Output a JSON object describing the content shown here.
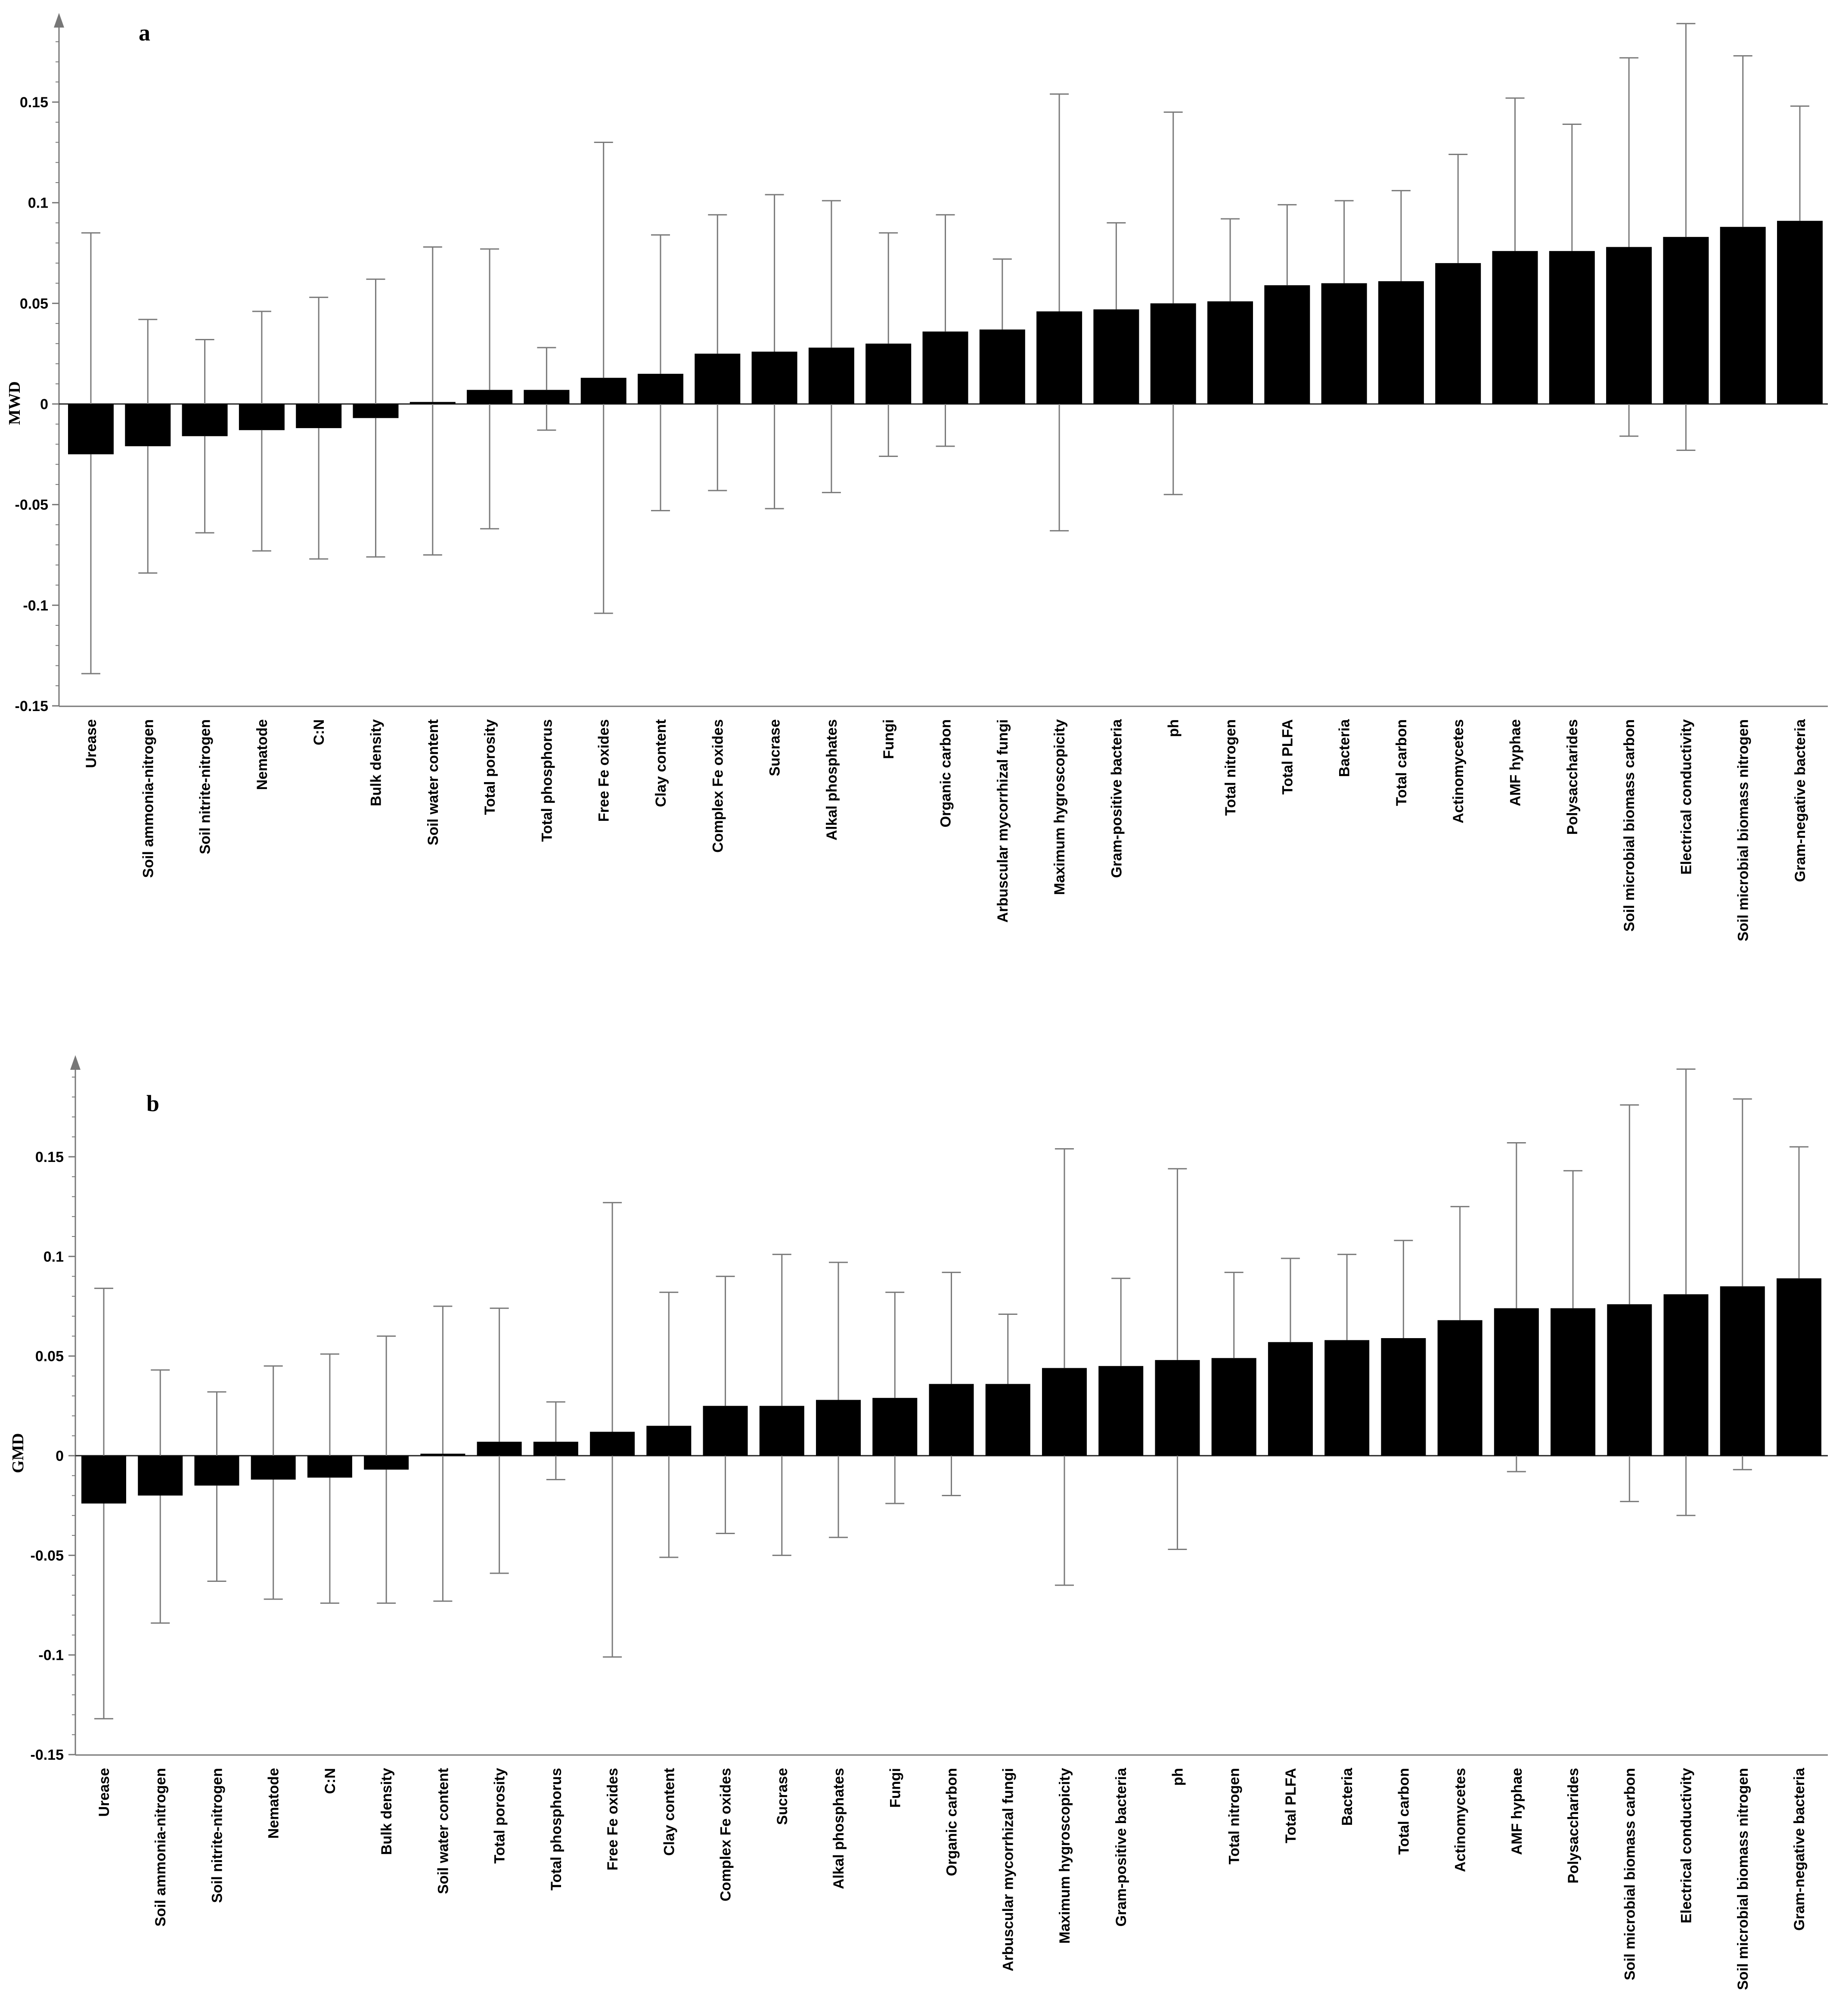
{
  "chart_data": [
    {
      "type": "bar",
      "panel": "a",
      "ylabel": "MWD",
      "ylim": [
        -0.15,
        0.2
      ],
      "yticks": [
        0.15,
        0.1,
        0.05,
        0,
        -0.05,
        -0.1,
        -0.15
      ],
      "ytick_labels": [
        "0.15",
        "0.1",
        "0.05",
        "0",
        "-0.05",
        "-0.1",
        "-0.15"
      ],
      "categories": [
        "Urease",
        "Soil ammonia-nitrogen",
        "Soil nitrite-nitrogen",
        "Nematode",
        "C:N",
        "Bulk density",
        "Soil water content",
        "Total porosity",
        "Total phosphorus",
        "Free Fe oxides",
        "Clay content",
        "Complex Fe oxides",
        "Sucrase",
        "Alkal phosphates",
        "Fungi",
        "Organic carbon",
        "Arbuscular mycorrhizal fungi",
        "Maximum hygroscopicity",
        "Gram-positive bacteria",
        "ph",
        "Total nitrogen",
        "Total PLFA",
        "Bacteria",
        "Total carbon",
        "Actinomycetes",
        "AMF hyphae",
        "Polysaccharides",
        "Soil microbial biomass carbon",
        "Electrical conductivity",
        "Soil microbial biomass nitrogen",
        "Gram-negative bacteria"
      ],
      "values": [
        -0.025,
        -0.021,
        -0.016,
        -0.013,
        -0.012,
        -0.007,
        0.001,
        0.007,
        0.007,
        0.013,
        0.015,
        0.025,
        0.026,
        0.028,
        0.03,
        0.036,
        0.037,
        0.046,
        0.047,
        0.05,
        0.051,
        0.059,
        0.06,
        0.061,
        0.07,
        0.076,
        0.076,
        0.078,
        0.083,
        0.088,
        0.091
      ],
      "err_low": [
        -0.134,
        -0.084,
        -0.064,
        -0.073,
        -0.077,
        -0.076,
        -0.075,
        -0.062,
        -0.013,
        -0.104,
        -0.053,
        -0.043,
        -0.052,
        -0.044,
        -0.026,
        -0.021,
        null,
        -0.063,
        null,
        -0.045,
        null,
        null,
        null,
        null,
        null,
        null,
        null,
        -0.016,
        -0.023,
        null,
        null
      ],
      "err_high": [
        0.085,
        0.042,
        0.032,
        0.046,
        0.053,
        0.062,
        0.078,
        0.077,
        0.028,
        0.13,
        0.084,
        0.094,
        0.104,
        0.101,
        0.085,
        0.094,
        0.072,
        0.154,
        0.09,
        0.145,
        0.092,
        0.099,
        0.101,
        0.106,
        0.124,
        0.152,
        0.139,
        0.172,
        0.189,
        0.173,
        0.148
      ]
    },
    {
      "type": "bar",
      "panel": "b",
      "ylabel": "GMD",
      "ylim": [
        -0.15,
        0.2
      ],
      "yticks": [
        0.15,
        0.1,
        0.05,
        0,
        -0.05,
        -0.1,
        -0.15
      ],
      "ytick_labels": [
        "0.15",
        "0.1",
        "0.05",
        "0",
        "-0.05",
        "-0.1",
        "-0.15"
      ],
      "categories": [
        "Urease",
        "Soil ammonia-nitrogen",
        "Soil nitrite-nitrogen",
        "Nematode",
        "C:N",
        "Bulk density",
        "Soil water content",
        "Total porosity",
        "Total phosphorus",
        "Free Fe oxides",
        "Clay content",
        "Complex Fe oxides",
        "Sucrase",
        "Alkal phosphates",
        "Fungi",
        "Organic carbon",
        "Arbuscular mycorrhizal fungi",
        "Maximum hygroscopicity",
        "Gram-positive bacteria",
        "ph",
        "Total nitrogen",
        "Total PLFA",
        "Bacteria",
        "Total carbon",
        "Actinomycetes",
        "AMF hyphae",
        "Polysaccharides",
        "Soil microbial biomass carbon",
        "Electrical conductivity",
        "Soil microbial biomass nitrogen",
        "Gram-negative bacteria"
      ],
      "values": [
        -0.024,
        -0.02,
        -0.015,
        -0.012,
        -0.011,
        -0.007,
        0.001,
        0.007,
        0.007,
        0.012,
        0.015,
        0.025,
        0.025,
        0.028,
        0.029,
        0.036,
        0.036,
        0.044,
        0.045,
        0.048,
        0.049,
        0.057,
        0.058,
        0.059,
        0.068,
        0.074,
        0.074,
        0.076,
        0.081,
        0.085,
        0.089
      ],
      "err_low": [
        -0.132,
        -0.084,
        -0.063,
        -0.072,
        -0.074,
        -0.074,
        -0.073,
        -0.059,
        -0.012,
        -0.101,
        -0.051,
        -0.039,
        -0.05,
        -0.041,
        -0.024,
        -0.02,
        null,
        -0.065,
        null,
        -0.047,
        null,
        null,
        null,
        null,
        null,
        -0.008,
        null,
        -0.023,
        -0.03,
        -0.007,
        null
      ],
      "err_high": [
        0.084,
        0.043,
        0.032,
        0.045,
        0.051,
        0.06,
        0.075,
        0.074,
        0.027,
        0.127,
        0.082,
        0.09,
        0.101,
        0.097,
        0.082,
        0.092,
        0.071,
        0.154,
        0.089,
        0.144,
        0.092,
        0.099,
        0.101,
        0.108,
        0.125,
        0.157,
        0.143,
        0.176,
        0.194,
        0.179,
        0.155
      ]
    }
  ]
}
